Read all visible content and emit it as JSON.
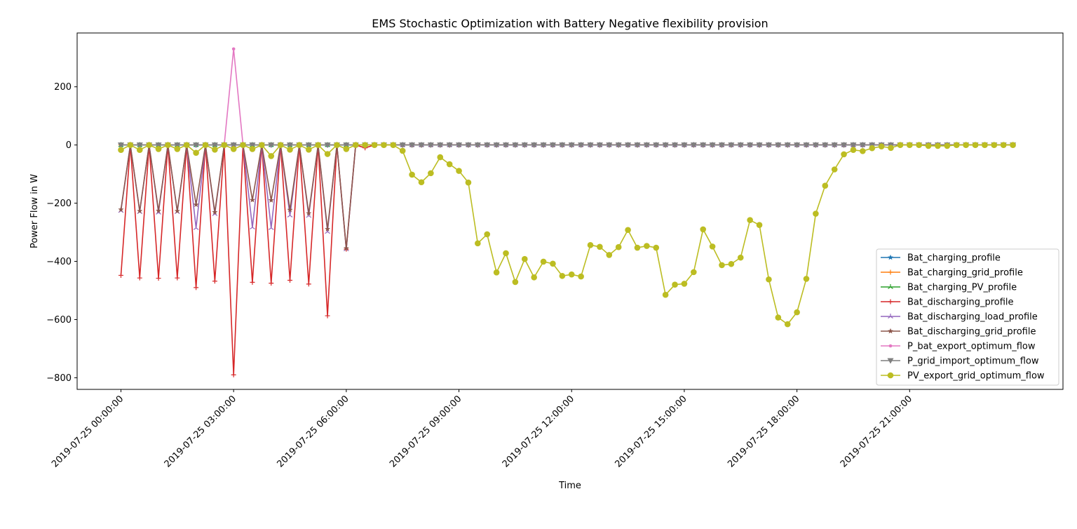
{
  "chart_data": {
    "type": "line",
    "title": "EMS Stochastic Optimization with Battery Negative flexibility provision",
    "xlabel": "Time",
    "ylabel": "Power Flow in W",
    "x_start": "2019-07-25 00:00:00",
    "x_step": "15min",
    "xlim": [
      "2019-07-24 22:50:00",
      "2019-07-26 01:05:00"
    ],
    "ylim": [
      -840,
      385
    ],
    "yticks": [
      200,
      0,
      -200,
      -400,
      -600,
      -800
    ],
    "xtick_labels": [
      "2019-07-25 00:00:00",
      "2019-07-25 03:00:00",
      "2019-07-25 06:00:00",
      "2019-07-25 09:00:00",
      "2019-07-25 12:00:00",
      "2019-07-25 15:00:00",
      "2019-07-25 18:00:00",
      "2019-07-25 21:00:00"
    ],
    "grid": false,
    "legend_position": "lower-right",
    "series": [
      {
        "name": "Bat_charging_profile",
        "color": "#1f77b4",
        "marker": "star",
        "values": [
          0,
          0,
          0,
          0,
          0,
          0,
          0,
          0,
          0,
          0,
          0,
          0,
          0,
          0,
          0,
          0,
          0,
          0,
          0,
          0,
          0,
          0,
          0,
          0,
          0,
          0,
          0,
          0,
          0,
          0,
          0,
          0,
          0,
          0,
          0,
          0,
          0,
          0,
          0,
          0,
          0,
          0,
          0,
          0,
          0,
          0,
          0,
          0,
          0,
          0,
          0,
          0,
          0,
          0,
          0,
          0,
          0,
          0,
          0,
          0,
          0,
          0,
          0,
          0,
          0,
          0,
          0,
          0,
          0,
          0,
          0,
          0,
          0,
          0,
          0,
          0,
          0,
          0,
          0,
          0,
          0,
          0,
          0,
          0,
          0,
          0,
          0,
          0,
          0,
          0,
          0,
          0,
          0,
          0,
          0,
          0
        ]
      },
      {
        "name": "Bat_charging_grid_profile",
        "color": "#ff7f0e",
        "marker": "plus",
        "values": [
          0,
          0,
          0,
          0,
          0,
          0,
          0,
          0,
          0,
          0,
          0,
          0,
          0,
          0,
          0,
          0,
          0,
          0,
          0,
          0,
          0,
          0,
          0,
          0,
          0,
          0,
          0,
          0,
          0,
          0,
          0,
          0,
          0,
          0,
          0,
          0,
          0,
          0,
          0,
          0,
          0,
          0,
          0,
          0,
          0,
          0,
          0,
          0,
          0,
          0,
          0,
          0,
          0,
          0,
          0,
          0,
          0,
          0,
          0,
          0,
          0,
          0,
          0,
          0,
          0,
          0,
          0,
          0,
          0,
          0,
          0,
          0,
          0,
          0,
          0,
          0,
          0,
          0,
          0,
          0,
          0,
          0,
          0,
          0,
          0,
          0,
          0,
          0,
          0,
          0,
          0,
          0,
          0,
          0,
          0,
          0
        ]
      },
      {
        "name": "Bat_charging_PV_profile",
        "color": "#2ca02c",
        "marker": "tri",
        "values": [
          0,
          0,
          0,
          0,
          0,
          0,
          0,
          0,
          0,
          0,
          0,
          0,
          0,
          0,
          0,
          0,
          0,
          0,
          0,
          0,
          0,
          0,
          0,
          0,
          0,
          0,
          0,
          0,
          0,
          0,
          0,
          0,
          0,
          0,
          0,
          0,
          0,
          0,
          0,
          0,
          0,
          0,
          0,
          0,
          0,
          0,
          0,
          0,
          0,
          0,
          0,
          0,
          0,
          0,
          0,
          0,
          0,
          0,
          0,
          0,
          0,
          0,
          0,
          0,
          0,
          0,
          0,
          0,
          0,
          0,
          0,
          0,
          0,
          0,
          0,
          0,
          0,
          0,
          0,
          0,
          0,
          0,
          0,
          0,
          0,
          0,
          0,
          0,
          0,
          0,
          0,
          0,
          0,
          0,
          0,
          0
        ]
      },
      {
        "name": "Bat_discharging_profile",
        "color": "#d62728",
        "marker": "plus",
        "values": [
          -448,
          0,
          -457,
          0,
          -458,
          0,
          -457,
          0,
          -490,
          0,
          -468,
          0,
          -790,
          0,
          -472,
          0,
          -475,
          0,
          -465,
          0,
          -478,
          0,
          -587,
          0,
          -358,
          0,
          -10,
          0,
          0,
          0,
          0,
          0,
          0,
          0,
          0,
          0,
          0,
          0,
          0,
          0,
          0,
          0,
          0,
          0,
          0,
          0,
          0,
          0,
          0,
          0,
          0,
          0,
          0,
          0,
          0,
          0,
          0,
          0,
          0,
          0,
          0,
          0,
          0,
          0,
          0,
          0,
          0,
          0,
          0,
          0,
          0,
          0,
          0,
          0,
          0,
          0,
          0,
          0,
          0,
          0,
          0,
          0,
          0,
          0,
          0,
          0,
          0,
          0,
          0,
          0,
          0,
          0,
          0,
          0,
          0,
          0
        ]
      },
      {
        "name": "Bat_discharging_load_profile",
        "color": "#9467bd",
        "marker": "tri",
        "values": [
          -226,
          0,
          -230,
          0,
          -232,
          0,
          -230,
          0,
          -285,
          0,
          -237,
          0,
          0,
          0,
          -283,
          0,
          -285,
          0,
          -242,
          0,
          -243,
          0,
          -298,
          0,
          -358,
          0,
          0,
          0,
          0,
          0,
          0,
          0,
          0,
          0,
          0,
          0,
          0,
          0,
          0,
          0,
          0,
          0,
          0,
          0,
          0,
          0,
          0,
          0,
          0,
          0,
          0,
          0,
          0,
          0,
          0,
          0,
          0,
          0,
          0,
          0,
          0,
          0,
          0,
          0,
          0,
          0,
          0,
          0,
          0,
          0,
          0,
          0,
          0,
          0,
          0,
          0,
          0,
          0,
          0,
          0,
          0,
          0,
          0,
          0,
          0,
          0,
          0,
          0,
          0,
          0,
          0,
          0,
          0,
          0,
          0,
          0
        ]
      },
      {
        "name": "Bat_discharging_grid_profile",
        "color": "#8c564b",
        "marker": "star",
        "values": [
          -222,
          0,
          -227,
          0,
          -226,
          0,
          -227,
          0,
          -205,
          0,
          -231,
          0,
          0,
          0,
          -189,
          0,
          -190,
          0,
          -223,
          0,
          -235,
          0,
          -289,
          0,
          -355,
          0,
          0,
          0,
          0,
          0,
          0,
          0,
          0,
          0,
          0,
          0,
          0,
          0,
          0,
          0,
          0,
          0,
          0,
          0,
          0,
          0,
          0,
          0,
          0,
          0,
          0,
          0,
          0,
          0,
          0,
          0,
          0,
          0,
          0,
          0,
          0,
          0,
          0,
          0,
          0,
          0,
          0,
          0,
          0,
          0,
          0,
          0,
          0,
          0,
          0,
          0,
          0,
          0,
          0,
          0,
          0,
          0,
          0,
          0,
          0,
          0,
          0,
          0,
          0,
          0,
          0,
          0,
          0,
          0,
          0,
          0
        ]
      },
      {
        "name": "P_bat_export_optimum_flow",
        "color": "#e377c2",
        "marker": "point",
        "values": [
          0,
          0,
          0,
          0,
          0,
          0,
          0,
          0,
          0,
          0,
          0,
          0,
          330,
          0,
          0,
          0,
          0,
          0,
          0,
          0,
          0,
          0,
          0,
          0,
          0,
          0,
          0,
          0,
          0,
          0,
          0,
          0,
          0,
          0,
          0,
          0,
          0,
          0,
          0,
          0,
          0,
          0,
          0,
          0,
          0,
          0,
          0,
          0,
          0,
          0,
          0,
          0,
          0,
          0,
          0,
          0,
          0,
          0,
          0,
          0,
          0,
          0,
          0,
          0,
          0,
          0,
          0,
          0,
          0,
          0,
          0,
          0,
          0,
          0,
          0,
          0,
          0,
          0,
          0,
          0,
          0,
          0,
          0,
          0,
          0,
          0,
          0,
          0,
          0,
          0,
          0,
          0,
          0,
          0,
          0,
          0
        ]
      },
      {
        "name": "P_grid_import_optimum_flow",
        "color": "#7f7f7f",
        "marker": "triangle-down",
        "values": [
          0,
          0,
          0,
          0,
          0,
          0,
          0,
          0,
          0,
          0,
          0,
          0,
          0,
          0,
          0,
          0,
          0,
          0,
          0,
          0,
          0,
          0,
          0,
          0,
          0,
          0,
          0,
          0,
          0,
          0,
          0,
          0,
          0,
          0,
          0,
          0,
          0,
          0,
          0,
          0,
          0,
          0,
          0,
          0,
          0,
          0,
          0,
          0,
          0,
          0,
          0,
          0,
          0,
          0,
          0,
          0,
          0,
          0,
          0,
          0,
          0,
          0,
          0,
          0,
          0,
          0,
          0,
          0,
          0,
          0,
          0,
          0,
          0,
          0,
          0,
          0,
          0,
          0,
          0,
          0,
          0,
          0,
          0,
          0,
          0,
          0,
          0,
          0,
          0,
          0,
          0,
          0,
          0,
          0,
          0,
          0
        ]
      },
      {
        "name": "PV_export_grid_optimum_flow",
        "color": "#bcbd22",
        "marker": "circle",
        "values": [
          -17,
          0,
          -17,
          0,
          -14,
          0,
          -14,
          0,
          -27,
          0,
          -16,
          0,
          -14,
          0,
          -14,
          0,
          -38,
          0,
          -16,
          0,
          -16,
          0,
          -31,
          0,
          -14,
          0,
          0,
          0,
          0,
          0,
          -20,
          -102,
          -128,
          -97,
          -42,
          -66,
          -89,
          -129,
          -338,
          -307,
          -438,
          -372,
          -471,
          -392,
          -455,
          -401,
          -408,
          -450,
          -445,
          -452,
          -344,
          -350,
          -378,
          -351,
          -292,
          -353,
          -347,
          -353,
          -515,
          -480,
          -477,
          -437,
          -290,
          -349,
          -413,
          -409,
          -387,
          -258,
          -275,
          -462,
          -593,
          -616,
          -575,
          -460,
          -236,
          -140,
          -84,
          -32,
          -17,
          -21,
          -11,
          -5,
          -10,
          0,
          0,
          0,
          -3,
          -3,
          -3,
          0,
          0,
          0,
          0,
          0,
          0,
          0
        ]
      }
    ]
  }
}
